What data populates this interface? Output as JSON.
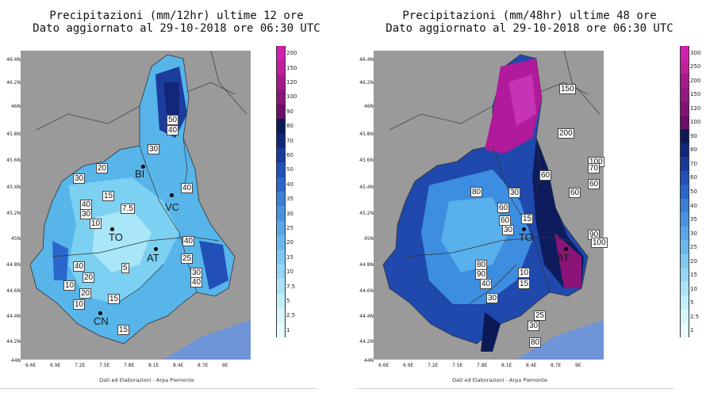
{
  "left": {
    "title_line1": "Precipitazioni (mm/12hr) ultime 12 ore",
    "title_line2": "Dato aggiornato al 29-10-2018 ore 06:30 UTC",
    "colorbar": {
      "labels": [
        "200",
        "150",
        "120",
        "100",
        "90",
        "80",
        "70",
        "60",
        "50",
        "40",
        "35",
        "30",
        "25",
        "20",
        "15",
        "10",
        "7.5",
        "5",
        "2.5",
        "1"
      ],
      "colors": [
        "#d01fb0",
        "#c0209e",
        "#a71a8c",
        "#8c1479",
        "#6c0f66",
        "#0b1a55",
        "#12267a",
        "#1a3a9a",
        "#2050b8",
        "#2a66cc",
        "#3a7ed8",
        "#4a92e0",
        "#5aa6e6",
        "#6cb8ec",
        "#80c8f0",
        "#95d6f4",
        "#abe2f6",
        "#c2eef8",
        "#d8f6fa",
        "#eafcfd"
      ]
    },
    "value_labels": [
      "50",
      "40",
      "30",
      "20",
      "30",
      "40",
      "15",
      "40",
      "30",
      "10",
      "7.5",
      "40",
      "40",
      "20",
      "25",
      "10",
      "20",
      "15",
      "10",
      "15",
      "5",
      "30",
      "40"
    ],
    "cities": [
      "BI",
      "VC",
      "TO",
      "AT",
      "CN"
    ]
  },
  "right": {
    "title_line1": "Precipitazioni (mm/48hr) ultime 48 ore",
    "title_line2": "Dato aggiornato al 29-10-2018 ore 06:30 UTC",
    "colorbar": {
      "labels": [
        "300",
        "250",
        "200",
        "150",
        "120",
        "100",
        "90",
        "80",
        "70",
        "60",
        "50",
        "40",
        "35",
        "30",
        "25",
        "20",
        "15",
        "10",
        "5",
        "2.5",
        "1"
      ],
      "colors": [
        "#d01fb0",
        "#c0209e",
        "#a71a8c",
        "#941784",
        "#831278",
        "#6c0f66",
        "#0b1a55",
        "#12267a",
        "#1a3a9a",
        "#2050b8",
        "#2a66cc",
        "#3a7ed8",
        "#4a92e0",
        "#5aa6e6",
        "#6cb8ec",
        "#80c8f0",
        "#95d6f4",
        "#abe2f6",
        "#c2eef8",
        "#d8f6fa",
        "#eafcfd"
      ]
    },
    "value_labels": [
      "150",
      "200",
      "100",
      "70",
      "60",
      "60",
      "60",
      "80",
      "30",
      "15",
      "60",
      "60",
      "30",
      "90",
      "100",
      "80",
      "90",
      "40",
      "10",
      "15",
      "30",
      "25",
      "30",
      "80"
    ],
    "cities": [
      "TO",
      "AT"
    ]
  },
  "lat_ticks": [
    "46.4N",
    "46.2N",
    "46N",
    "45.8N",
    "45.6N",
    "45.4N",
    "45.2N",
    "45N",
    "44.8N",
    "44.6N",
    "44.4N",
    "44.2N",
    "44N"
  ],
  "lon_ticks": [
    "6.6E",
    "6.9E",
    "7.2E",
    "7.5E",
    "7.8E",
    "8.1E",
    "8.4E",
    "8.7E",
    "9E"
  ],
  "footer": "Dati ed Elaborazioni - Arpa Piemonte",
  "colors": {
    "land": "#9a9a9a",
    "sea": "#6f95d8",
    "border": "#444444"
  }
}
